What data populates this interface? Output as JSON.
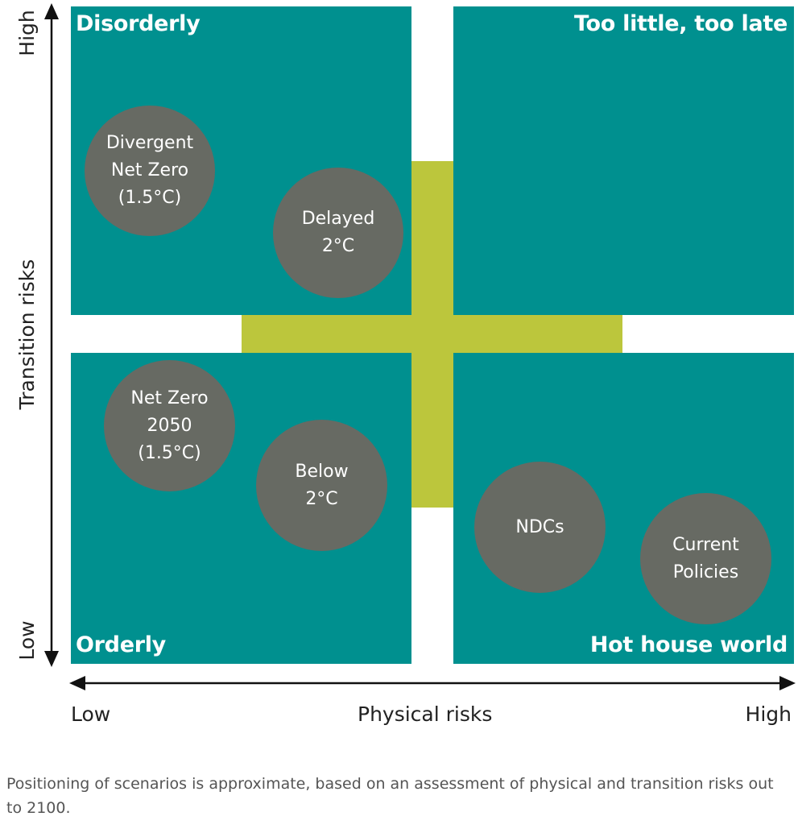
{
  "colors": {
    "teal": "#00908f",
    "lime": "#bcc63c",
    "bubble": "#676a63",
    "axis": "#111111",
    "text": "#222222",
    "caption": "#555555"
  },
  "quadrants": {
    "top_left": "Disorderly",
    "top_right": "Too little, too late",
    "bottom_left": "Orderly",
    "bottom_right": "Hot house world"
  },
  "scenarios": {
    "divergent_net_zero": "Divergent\nNet Zero\n(1.5°C)",
    "delayed_2c": "Delayed\n2°C",
    "net_zero_2050": "Net Zero\n2050\n(1.5°C)",
    "below_2c": "Below\n2°C",
    "ndcs": "NDCs",
    "current_policies": "Current\nPolicies"
  },
  "y_axis": {
    "label": "Transition risks",
    "high": "High",
    "low": "Low"
  },
  "x_axis": {
    "label": "Physical risks",
    "low": "Low",
    "high": "High"
  },
  "caption": "Positioning of scenarios is approximate, based on an assessment of physical and transition risks out to 2100."
}
